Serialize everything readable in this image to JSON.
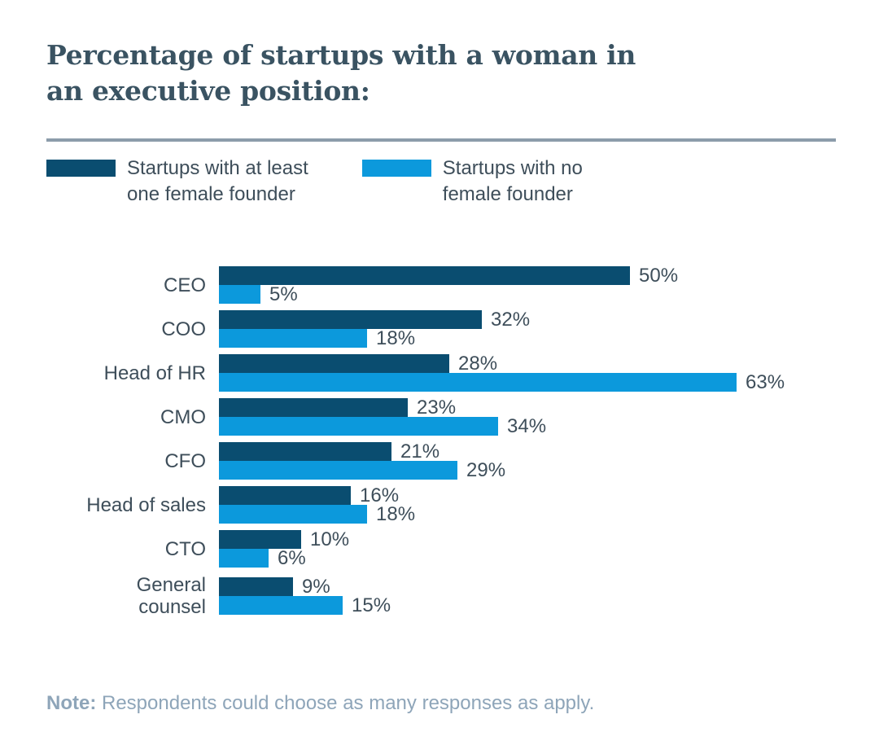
{
  "title": "Percentage of startups with a woman in\nan executive position:",
  "legend": [
    {
      "label": "Startups with at least\none female founder",
      "color": "#0A4D70"
    },
    {
      "label": "Startups with no\nfemale founder",
      "color": "#0C99DC"
    }
  ],
  "note": {
    "label": "Note:",
    "text": " Respondents could choose as many responses as apply."
  },
  "colors": {
    "title_text": "#3A5362",
    "body_text": "#3E4E5A",
    "note_text": "#8EA5B9",
    "divider": "#8C9CAA",
    "background": "#FFFFFF",
    "dark_bar": "#0A4D70",
    "light_bar": "#0C99DC"
  },
  "chart_data": {
    "type": "bar",
    "orientation": "horizontal",
    "title": "Percentage of startups with a woman in an executive position:",
    "categories": [
      "CEO",
      "COO",
      "Head of HR",
      "CMO",
      "CFO",
      "Head of sales",
      "CTO",
      "General\ncounsel"
    ],
    "series": [
      {
        "name": "Startups with at least one female founder",
        "color": "#0A4D70",
        "values": [
          50,
          32,
          28,
          23,
          21,
          16,
          10,
          9
        ]
      },
      {
        "name": "Startups with no female founder",
        "color": "#0C99DC",
        "values": [
          5,
          18,
          63,
          34,
          29,
          18,
          6,
          15
        ]
      }
    ],
    "value_suffix": "%",
    "value_labels": true,
    "xlim": [
      0,
      70
    ],
    "grid": false,
    "legend_position": "top",
    "note": "Note: Respondents could choose as many responses as apply."
  }
}
